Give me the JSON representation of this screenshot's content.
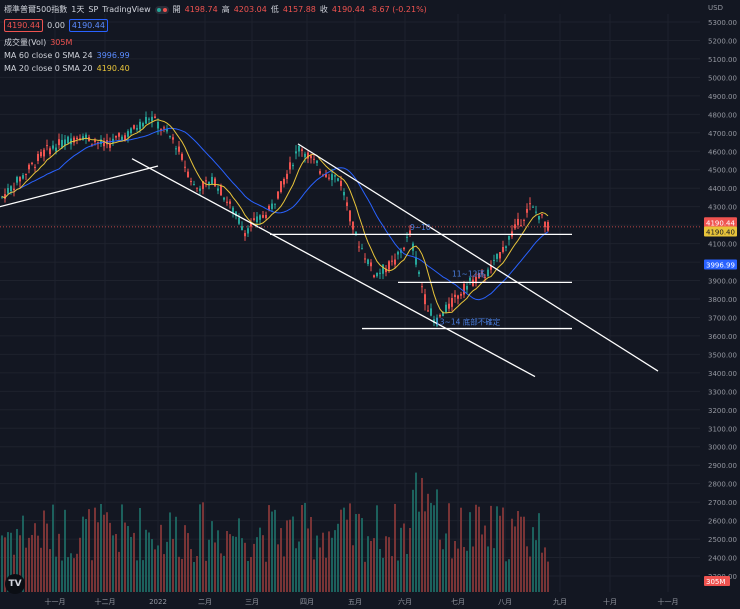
{
  "header": {
    "symbol": "標準普爾500指數",
    "interval": "1天",
    "exchange": "SP",
    "source": "TradingView",
    "open_label": "開",
    "open": "4198.74",
    "high_label": "高",
    "high": "4203.04",
    "low_label": "低",
    "low": "4157.88",
    "close_label": "收",
    "close": "4190.44",
    "change": "-8.67 (-0.21%)",
    "bid": "4190.44",
    "spread": "0.00",
    "ask": "4190.44"
  },
  "indicators": {
    "volume_label": "成交量(Vol)",
    "volume_value": "305M",
    "ma60_label": "MA 60 close 0 SMA 24",
    "ma60_value": "3996.99",
    "ma20_label": "MA 20 close 0 SMA 20",
    "ma20_value": "4190.40"
  },
  "colors": {
    "background": "#131722",
    "up": "#26a69a",
    "down": "#ef5350",
    "ma20": "#e8c43a",
    "ma60": "#2962ff",
    "trendline": "#ffffff",
    "annotation": "#4a7fe0"
  },
  "chart_data": {
    "type": "candlestick",
    "currency_label": "USD",
    "y_ticks": [
      "5300.00",
      "5200.00",
      "5100.00",
      "5000.00",
      "4900.00",
      "4800.00",
      "4700.00",
      "4600.00",
      "4500.00",
      "4400.00",
      "4300.00",
      "4200.00",
      "4100.00",
      "4000.00",
      "3900.00",
      "3800.00",
      "3700.00",
      "3600.00",
      "3500.00",
      "3400.00",
      "3300.00",
      "3200.00",
      "3100.00",
      "3000.00",
      "2900.00",
      "2800.00",
      "2700.00",
      "2600.00",
      "2500.00",
      "2400.00",
      "2300.00"
    ],
    "ylim": [
      2300,
      5300
    ],
    "x_ticks": [
      "十一月",
      "十二月",
      "2022",
      "二月",
      "三月",
      "四月",
      "五月",
      "六月",
      "七月",
      "八月",
      "九月",
      "十月",
      "十一月"
    ],
    "price_labels": {
      "last": "4190.44",
      "ma20": "4190.40",
      "ma60": "3996.99",
      "volume": "305M"
    },
    "ma60_at_last": 3996.99,
    "ma20_at_last": 4190.4,
    "last_close": 4190.44,
    "key_prices": [
      {
        "date": "2021-10",
        "close": 4340
      },
      {
        "date": "2021-11",
        "close": 4650
      },
      {
        "date": "2021-12",
        "close": 4700
      },
      {
        "date": "2022-01",
        "close": 4790
      },
      {
        "date": "2022-02",
        "close": 4380
      },
      {
        "date": "2022-03",
        "close": 4170
      },
      {
        "date": "2022-04",
        "close": 4630
      },
      {
        "date": "2022-05",
        "close": 3930
      },
      {
        "date": "2022-06",
        "close": 4150
      },
      {
        "date": "2022-06",
        "close": 3670
      },
      {
        "date": "2022-07",
        "close": 3900
      },
      {
        "date": "2022-08",
        "close": 4300
      },
      {
        "date": "2022-08",
        "close": 4190.44
      }
    ],
    "horizontal_levels": [
      4150,
      3890,
      3640
    ],
    "annotations": [
      "9~10",
      "11~12碼",
      "13~14 底部不確定"
    ]
  }
}
